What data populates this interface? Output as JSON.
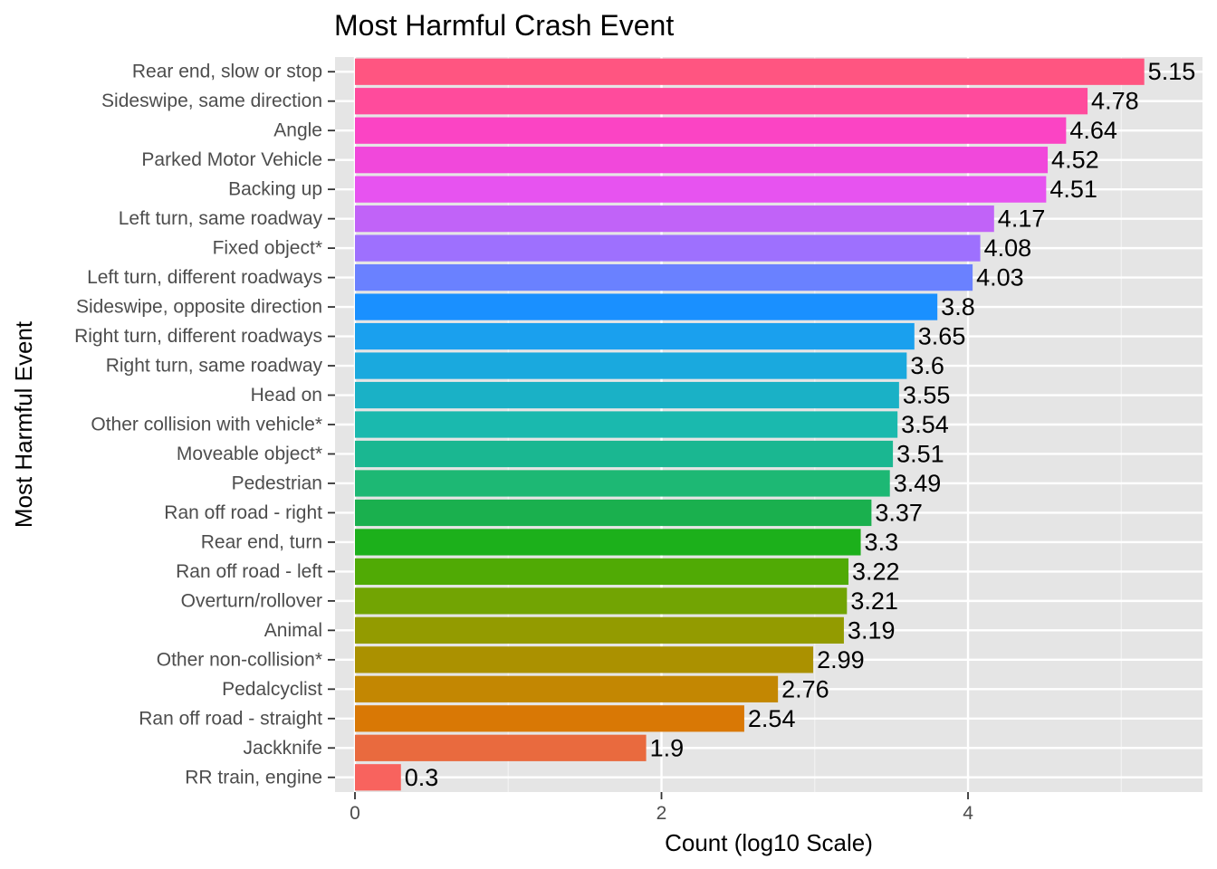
{
  "chart_data": {
    "type": "bar",
    "orientation": "horizontal",
    "title": "Most Harmful Crash Event",
    "xlabel": "Count (log10 Scale)",
    "ylabel": "Most Harmful Event",
    "xlim": [
      -0.13,
      5.53
    ],
    "xticks": [
      0,
      2,
      4
    ],
    "xtick_labels": [
      "0",
      "2",
      "4"
    ],
    "minor_gridlines": [
      1,
      3,
      5
    ],
    "grid": true,
    "legend": "none",
    "panel_background": "#e5e5e5",
    "categories": [
      "Rear end, slow or stop",
      "Sideswipe, same direction",
      "Angle",
      "Parked Motor Vehicle",
      "Backing up",
      "Left turn, same roadway",
      "Fixed object*",
      "Left turn, different roadways",
      "Sideswipe, opposite direction",
      "Right turn, different roadways",
      "Right turn, same roadway",
      "Head on",
      "Other collision with vehicle*",
      "Moveable object*",
      "Pedestrian",
      "Ran off road - right",
      "Rear end, turn",
      "Ran off road - left",
      "Overturn/rollover",
      "Animal",
      "Other non-collision*",
      "Pedalcyclist",
      "Ran off road - straight",
      "Jackknife",
      "RR train, engine"
    ],
    "values": [
      5.15,
      4.78,
      4.64,
      4.52,
      4.51,
      4.17,
      4.08,
      4.03,
      3.8,
      3.65,
      3.6,
      3.55,
      3.54,
      3.51,
      3.49,
      3.37,
      3.3,
      3.22,
      3.21,
      3.19,
      2.99,
      2.76,
      2.54,
      1.9,
      0.3
    ],
    "value_labels": [
      "5.15",
      "4.78",
      "4.64",
      "4.52",
      "4.51",
      "4.17",
      "4.08",
      "4.03",
      "3.8",
      "3.65",
      "3.6",
      "3.55",
      "3.54",
      "3.51",
      "3.49",
      "3.37",
      "3.3",
      "3.22",
      "3.21",
      "3.19",
      "2.99",
      "2.76",
      "2.54",
      "1.9",
      "0.3"
    ],
    "colors": [
      "#FF5581",
      "#FF4B9C",
      "#FB44C4",
      "#F148DB",
      "#E753F0",
      "#C163F8",
      "#9E70FE",
      "#6A81FF",
      "#1A90FF",
      "#1AA0EE",
      "#1AA9DE",
      "#1AB1C6",
      "#1AB9AE",
      "#1AB791",
      "#1DB874",
      "#1AB04E",
      "#1CB01B",
      "#50AA05",
      "#72A403",
      "#939B00",
      "#AB9100",
      "#C38702",
      "#D97805",
      "#E96A3E",
      "#F8635E"
    ]
  }
}
